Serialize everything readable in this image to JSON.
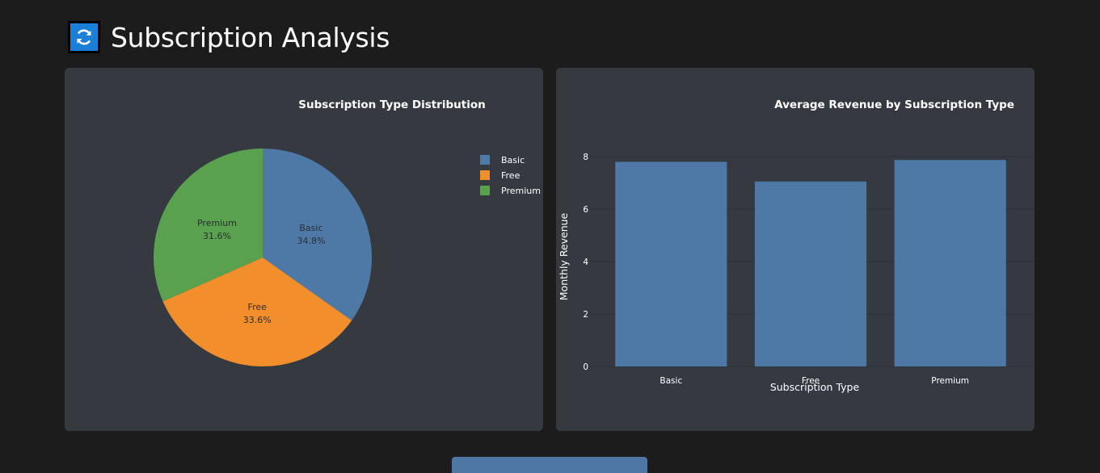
{
  "header": {
    "title": "Subscription Analysis",
    "icon": "refresh-icon",
    "icon_color": "#1a7fd6"
  },
  "colors": {
    "background": "#1c1c1d",
    "card": "#353a41",
    "basic": "#4e79a7",
    "free": "#f28e2b",
    "premium": "#59a14f"
  },
  "chart_data": [
    {
      "type": "pie",
      "title": "Subscription Type Distribution",
      "labels": [
        "Basic",
        "Free",
        "Premium"
      ],
      "values": [
        34.8,
        33.6,
        31.6
      ],
      "percent_labels": [
        "34.8%",
        "33.6%",
        "31.6%"
      ],
      "colors": [
        "#4e79a7",
        "#f28e2b",
        "#59a14f"
      ],
      "legend": "top-right"
    },
    {
      "type": "bar",
      "title": "Average Revenue by Subscription Type",
      "categories": [
        "Basic",
        "Free",
        "Premium"
      ],
      "values": [
        7.8,
        7.05,
        7.87
      ],
      "xlabel": "Subscription Type",
      "ylabel": "Monthly Revenue",
      "ylim": [
        0,
        8
      ],
      "yticks": [
        "0",
        "2",
        "4",
        "6",
        "8"
      ],
      "grid": true,
      "color": "#4e79a7"
    }
  ]
}
